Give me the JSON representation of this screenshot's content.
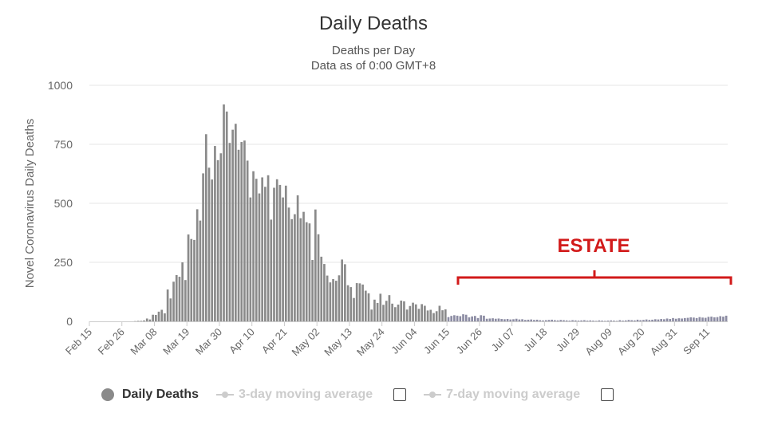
{
  "chart_data": {
    "type": "bar",
    "title": "Daily Deaths",
    "subtitle": [
      "Deaths per Day",
      "Data as of 0:00 GMT+8"
    ],
    "ylabel": "Novel Coronavirus Daily Deaths",
    "ylim": [
      0,
      1000
    ],
    "yticks": [
      0,
      250,
      500,
      750,
      1000
    ],
    "grid": true,
    "start_date": "Feb 15",
    "xtick_labels": [
      "Feb 15",
      "Feb 26",
      "Mar 08",
      "Mar 19",
      "Mar 30",
      "Apr 10",
      "Apr 21",
      "May 02",
      "May 13",
      "May 24",
      "Jun 04",
      "Jun 15",
      "Jun 26",
      "Jul 07",
      "Jul 18",
      "Jul 29",
      "Aug 09",
      "Aug 20",
      "Aug 31",
      "Sep 11"
    ],
    "series": [
      {
        "name": "Daily Deaths",
        "color": "#8a8a8a",
        "values": [
          0,
          0,
          0,
          0,
          0,
          0,
          0,
          0,
          0,
          0,
          0,
          0,
          0,
          0,
          0,
          1,
          2,
          2,
          4,
          12,
          8,
          28,
          27,
          41,
          49,
          34,
          135,
          97,
          168,
          196,
          189,
          250,
          175,
          368,
          349,
          345,
          475,
          427,
          627,
          793,
          651,
          601,
          743,
          683,
          712,
          919,
          889,
          756,
          812,
          837,
          727,
          760,
          766,
          681,
          525,
          636,
          604,
          542,
          610,
          570,
          619,
          431,
          566,
          602,
          578,
          525,
          575,
          482,
          433,
          454,
          534,
          437,
          464,
          420,
          415,
          260,
          474,
          369,
          274,
          243,
          194,
          165,
          179,
          172,
          195,
          262,
          242,
          153,
          145,
          99,
          162,
          161,
          156,
          130,
          119,
          50,
          92,
          78,
          117,
          70,
          87,
          111,
          75,
          60,
          71,
          88,
          85,
          50,
          65,
          79,
          72,
          53,
          73,
          66,
          46,
          49,
          35,
          43,
          66,
          47,
          51,
          18,
          23,
          26,
          24,
          22,
          30,
          28,
          17,
          21,
          23,
          14,
          26,
          24,
          11,
          12,
          13,
          11,
          12,
          10,
          9,
          10,
          8,
          9,
          11,
          8,
          9,
          6,
          7,
          8,
          6,
          7,
          5,
          4,
          5,
          6,
          7,
          5,
          4,
          6,
          5,
          4,
          3,
          5,
          4,
          3,
          4,
          5,
          3,
          4,
          3,
          2,
          4,
          3,
          2,
          3,
          4,
          3,
          2,
          5,
          3,
          4,
          6,
          5,
          4,
          7,
          5,
          6,
          8,
          6,
          7,
          9,
          8,
          10,
          9,
          12,
          10,
          14,
          11,
          13,
          12,
          14,
          15,
          17,
          16,
          14,
          18,
          16,
          15,
          19,
          20,
          17,
          18,
          22,
          20,
          24
        ]
      }
    ],
    "legend": {
      "position": "bottom",
      "items": [
        {
          "label": "Daily Deaths",
          "active": true
        },
        {
          "label": "3-day moving average",
          "active": false
        },
        {
          "label": "7-day moving average",
          "active": false
        }
      ]
    },
    "annotation": {
      "text": "ESTATE",
      "color": "#d21a1a",
      "from": "Jun 18",
      "to": "Sep 22"
    }
  }
}
